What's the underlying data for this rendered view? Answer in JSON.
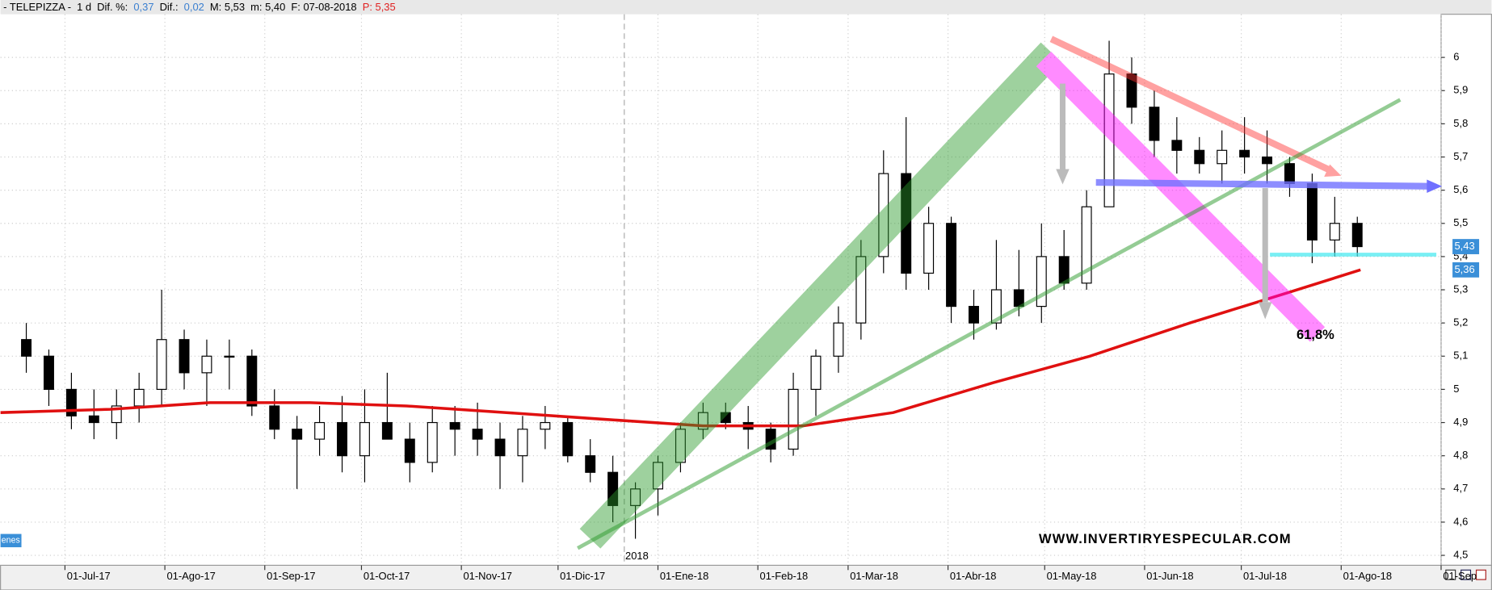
{
  "header": {
    "items": [
      {
        "text": "- TELEPIZZA -",
        "color": "#000000"
      },
      {
        "text": "1 d",
        "color": "#000000"
      },
      {
        "text": "Dif. %:",
        "color": "#000000"
      },
      {
        "text": "0,37",
        "color": "#3a7fd0"
      },
      {
        "text": "Dif.:",
        "color": "#000000"
      },
      {
        "text": "0,02",
        "color": "#3a7fd0"
      },
      {
        "text": "M: 5,53",
        "color": "#000000"
      },
      {
        "text": "m: 5,40",
        "color": "#000000"
      },
      {
        "text": "F: 07-08-2018",
        "color": "#000000"
      },
      {
        "text": "P: 5,35",
        "color": "#e02020"
      }
    ]
  },
  "chart_data": {
    "type": "candlestick",
    "x": [
      "2017-06-19",
      "2017-06-26",
      "2017-07-03",
      "2017-07-10",
      "2017-07-17",
      "2017-07-24",
      "2017-07-31",
      "2017-08-07",
      "2017-08-14",
      "2017-08-21",
      "2017-08-28",
      "2017-09-04",
      "2017-09-11",
      "2017-09-18",
      "2017-09-25",
      "2017-10-02",
      "2017-10-09",
      "2017-10-16",
      "2017-10-23",
      "2017-10-30",
      "2017-11-06",
      "2017-11-13",
      "2017-11-20",
      "2017-11-27",
      "2017-12-04",
      "2017-12-11",
      "2017-12-18",
      "2017-12-25",
      "2018-01-01",
      "2018-01-08",
      "2018-01-15",
      "2018-01-22",
      "2018-01-29",
      "2018-02-05",
      "2018-02-12",
      "2018-02-19",
      "2018-02-26",
      "2018-03-05",
      "2018-03-12",
      "2018-03-19",
      "2018-03-26",
      "2018-04-02",
      "2018-04-09",
      "2018-04-16",
      "2018-04-23",
      "2018-04-30",
      "2018-05-07",
      "2018-05-14",
      "2018-05-21",
      "2018-05-28",
      "2018-06-04",
      "2018-06-11",
      "2018-06-18",
      "2018-06-25",
      "2018-07-02",
      "2018-07-09",
      "2018-07-16",
      "2018-07-23",
      "2018-07-30",
      "2018-08-06"
    ],
    "open": [
      5.15,
      5.1,
      5.0,
      4.92,
      4.9,
      4.95,
      5.0,
      5.15,
      5.05,
      5.1,
      5.1,
      4.95,
      4.88,
      4.85,
      4.9,
      4.8,
      4.9,
      4.85,
      4.78,
      4.9,
      4.88,
      4.85,
      4.8,
      4.88,
      4.9,
      4.8,
      4.75,
      4.65,
      4.7,
      4.78,
      4.88,
      4.93,
      4.9,
      4.88,
      4.82,
      5.0,
      5.1,
      5.2,
      5.4,
      5.65,
      5.35,
      5.5,
      5.25,
      5.2,
      5.3,
      5.25,
      5.4,
      5.32,
      5.55,
      5.95,
      5.85,
      5.75,
      5.72,
      5.68,
      5.72,
      5.7,
      5.68,
      5.62,
      5.45,
      5.5
    ],
    "high": [
      5.2,
      5.12,
      5.05,
      5.0,
      5.0,
      5.05,
      5.3,
      5.18,
      5.15,
      5.15,
      5.12,
      5.0,
      4.92,
      4.95,
      4.98,
      5.0,
      5.05,
      4.9,
      4.95,
      4.95,
      4.96,
      4.9,
      4.92,
      4.95,
      4.92,
      4.85,
      4.8,
      4.72,
      4.8,
      4.9,
      4.96,
      4.96,
      4.95,
      4.9,
      5.05,
      5.12,
      5.25,
      5.45,
      5.72,
      5.82,
      5.55,
      5.52,
      5.3,
      5.45,
      5.42,
      5.5,
      5.48,
      5.6,
      6.05,
      6.0,
      5.9,
      5.82,
      5.76,
      5.78,
      5.82,
      5.78,
      5.7,
      5.65,
      5.58,
      5.52
    ],
    "low": [
      5.05,
      4.95,
      4.88,
      4.85,
      4.85,
      4.9,
      4.95,
      5.0,
      4.95,
      5.0,
      4.92,
      4.85,
      4.7,
      4.8,
      4.75,
      4.72,
      4.85,
      4.72,
      4.75,
      4.8,
      4.8,
      4.7,
      4.72,
      4.82,
      4.78,
      4.72,
      4.6,
      4.55,
      4.62,
      4.75,
      4.85,
      4.88,
      4.82,
      4.78,
      4.8,
      4.92,
      5.05,
      5.15,
      5.35,
      5.3,
      5.3,
      5.2,
      5.15,
      5.18,
      5.22,
      5.2,
      5.3,
      5.3,
      5.55,
      5.8,
      5.7,
      5.65,
      5.65,
      5.62,
      5.65,
      5.62,
      5.58,
      5.38,
      5.4,
      5.4
    ],
    "close": [
      5.1,
      5.0,
      4.92,
      4.9,
      4.95,
      5.0,
      5.15,
      5.05,
      5.1,
      5.1,
      4.95,
      4.88,
      4.85,
      4.9,
      4.8,
      4.9,
      4.85,
      4.78,
      4.9,
      4.88,
      4.85,
      4.8,
      4.88,
      4.9,
      4.8,
      4.75,
      4.65,
      4.7,
      4.78,
      4.88,
      4.93,
      4.9,
      4.88,
      4.82,
      5.0,
      5.1,
      5.2,
      5.4,
      5.65,
      5.35,
      5.5,
      5.25,
      5.2,
      5.3,
      5.25,
      5.4,
      5.32,
      5.55,
      5.95,
      5.85,
      5.75,
      5.72,
      5.68,
      5.72,
      5.7,
      5.68,
      5.62,
      5.45,
      5.5,
      5.43
    ],
    "ma": {
      "color": "#e01010",
      "x": [
        "2017-06-11",
        "2017-07-15",
        "2017-08-15",
        "2017-09-15",
        "2017-10-15",
        "2017-11-15",
        "2017-12-15",
        "2018-01-15",
        "2018-02-15",
        "2018-03-15",
        "2018-04-15",
        "2018-05-15",
        "2018-06-15",
        "2018-07-15",
        "2018-08-07"
      ],
      "values": [
        4.93,
        4.94,
        4.96,
        4.96,
        4.95,
        4.93,
        4.91,
        4.89,
        4.89,
        4.93,
        5.02,
        5.1,
        5.2,
        5.29,
        5.36
      ]
    },
    "xlim": [
      "2017-06-11",
      "2018-09-01"
    ],
    "xticks": [
      {
        "value": "2017-07-01",
        "label": "01-Jul-17"
      },
      {
        "value": "2017-08-01",
        "label": "01-Ago-17"
      },
      {
        "value": "2017-09-01",
        "label": "01-Sep-17"
      },
      {
        "value": "2017-10-01",
        "label": "01-Oct-17"
      },
      {
        "value": "2017-11-01",
        "label": "01-Nov-17"
      },
      {
        "value": "2017-12-01",
        "label": "01-Dic-17"
      },
      {
        "value": "2018-01-01",
        "label": "01-Ene-18"
      },
      {
        "value": "2018-02-01",
        "label": "01-Feb-18"
      },
      {
        "value": "2018-03-01",
        "label": "01-Mar-18"
      },
      {
        "value": "2018-04-01",
        "label": "01-Abr-18"
      },
      {
        "value": "2018-05-01",
        "label": "01-May-18"
      },
      {
        "value": "2018-06-01",
        "label": "01-Jun-18"
      },
      {
        "value": "2018-07-01",
        "label": "01-Jul-18"
      },
      {
        "value": "2018-08-01",
        "label": "01-Ago-18"
      },
      {
        "value": "2018-09-01",
        "label": "01-Sep"
      }
    ],
    "ylim": [
      4.47,
      6.13
    ],
    "yticks": [
      {
        "value": 4.5,
        "label": "4,5"
      },
      {
        "value": 4.6,
        "label": "4,6"
      },
      {
        "value": 4.7,
        "label": "4,7"
      },
      {
        "value": 4.8,
        "label": "4,8"
      },
      {
        "value": 4.9,
        "label": "4,9"
      },
      5,
      {
        "value": 5.1,
        "label": "5,1"
      },
      {
        "value": 5.2,
        "label": "5,2"
      },
      {
        "value": 5.3,
        "label": "5,3"
      },
      {
        "value": 5.4,
        "label": "5,4"
      },
      {
        "value": 5.5,
        "label": "5,5"
      },
      {
        "value": 5.6,
        "label": "5,6"
      },
      {
        "value": 5.7,
        "label": "5,7"
      },
      {
        "value": 5.8,
        "label": "5,8"
      },
      {
        "value": 5.9,
        "label": "5,9"
      },
      6
    ],
    "grid": true,
    "price_labels": [
      {
        "value": 5.43,
        "label": "5,43",
        "color": "#3a8fd8"
      },
      {
        "value": 5.36,
        "label": "5,36",
        "color": "#3a8fd8"
      }
    ],
    "annotations": {
      "year": "2018",
      "fib": "61,8%",
      "watermark": "WWW.INVERTIRYESPECULAR.COM",
      "volume_tag": "enes"
    }
  }
}
